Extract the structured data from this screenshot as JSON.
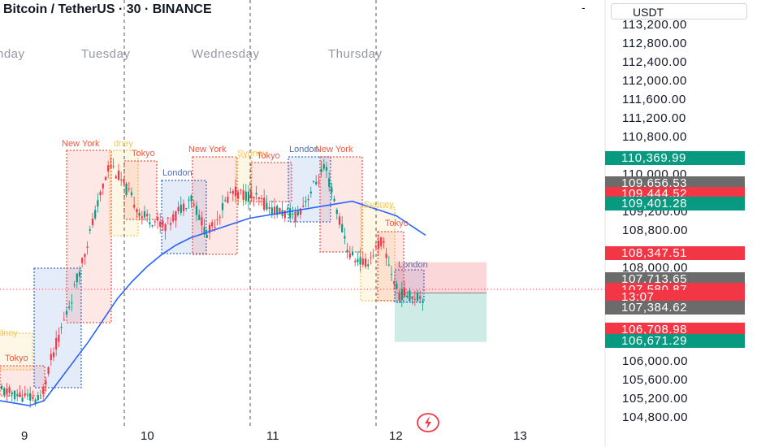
{
  "header": {
    "title": "Bitcoin / TetherUS · 30 · BINANCE",
    "menu_glyph": "-"
  },
  "currency": "USDT",
  "days": [
    "nday",
    "Tuesday",
    "Wednesday",
    "Thursday"
  ],
  "sessions": [
    {
      "label": "New York",
      "color": "#f05945"
    },
    {
      "label": "dney",
      "color": "#f9c74f"
    },
    {
      "label": "Tokyo",
      "color": "#f05945"
    },
    {
      "label": "London",
      "color": "#3d6fd6"
    },
    {
      "label": "New York",
      "color": "#f05945"
    },
    {
      "label": "Sydney",
      "color": "#f9c74f"
    },
    {
      "label": "Tokyo",
      "color": "#f05945"
    },
    {
      "label": "London",
      "color": "#3d6fd6"
    },
    {
      "label": "New York",
      "color": "#f05945"
    },
    {
      "label": "Sydney",
      "color": "#f9c74f"
    },
    {
      "label": "Tokyo",
      "color": "#f05945"
    },
    {
      "label": "London",
      "color": "#3d6fd6"
    },
    {
      "label": "dney",
      "color": "#f9c74f"
    },
    {
      "label": "Tokyo",
      "color": "#f05945"
    }
  ],
  "price_labels": [
    {
      "value": "110,369.99",
      "color": "#089981"
    },
    {
      "value": "109,656.53",
      "color": "#6b6b6b"
    },
    {
      "value": "109,444.52",
      "color": "#f23645"
    },
    {
      "value": "109,401.28",
      "color": "#089981"
    },
    {
      "value": "108,347.51",
      "color": "#f23645"
    },
    {
      "value": "107,713.65",
      "color": "#6b6b6b"
    },
    {
      "value": "107,580.87",
      "color": "#f23645"
    },
    {
      "value": "13:07",
      "color": "#f23645"
    },
    {
      "value": "107,384.62",
      "color": "#6b6b6b"
    },
    {
      "value": "106,708.98",
      "color": "#f23645"
    },
    {
      "value": "106,671.29",
      "color": "#089981"
    }
  ],
  "chart_data": {
    "type": "candlestick",
    "symbol": "Bitcoin / TetherUS",
    "interval": "30",
    "exchange": "BINANCE",
    "y_ticks": [
      "113,200.00",
      "112,800.00",
      "112,400.00",
      "112,000.00",
      "111,600.00",
      "111,200.00",
      "110,800.00",
      "110,000.00",
      "109,200.00",
      "108,800.00",
      "108,000.00",
      "106,000.00",
      "105,600.00",
      "105,200.00",
      "104,800.00"
    ],
    "y_range": [
      104700,
      113300
    ],
    "x_ticks": [
      "9",
      "10",
      "11",
      "12",
      "13"
    ],
    "last_price": 107580.87,
    "countdown": "13:07",
    "moving_average": [
      105500,
      105450,
      105400,
      105500,
      105900,
      106300,
      106700,
      107150,
      107600,
      107950,
      108250,
      108500,
      108700,
      108850,
      108950,
      109050,
      109150,
      109250,
      109300,
      109350,
      109400,
      109450,
      109500,
      109550,
      109600,
      109500,
      109400,
      109300,
      109100,
      108900
    ],
    "long_position": {
      "entry": 107713.65,
      "stop": 108347.51,
      "target": 106708.98
    }
  }
}
